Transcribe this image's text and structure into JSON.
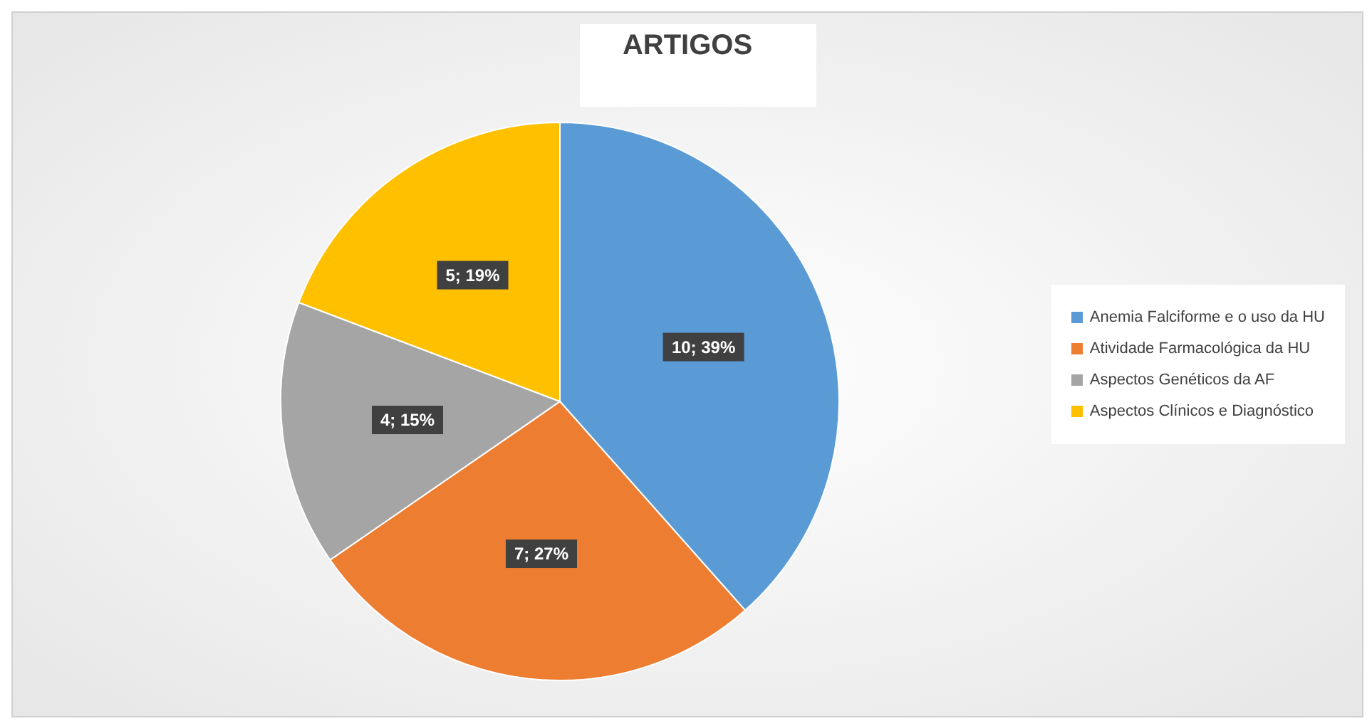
{
  "chart_data": {
    "type": "pie",
    "title": "ARTIGOS",
    "categories": [
      "Anemia Falciforme e o uso da HU",
      "Atividade Farmacológica da HU",
      "Aspectos Genéticos da AF",
      "Aspectos Clínicos e Diagnóstico"
    ],
    "values": [
      10,
      7,
      4,
      5
    ],
    "colors": [
      "#5b9bd5",
      "#ed7d31",
      "#a5a5a5",
      "#ffc000"
    ],
    "value_labels": [
      "10; 39%",
      "7; 27%",
      "4; 15%",
      "5; 19%"
    ],
    "legend": "right"
  }
}
